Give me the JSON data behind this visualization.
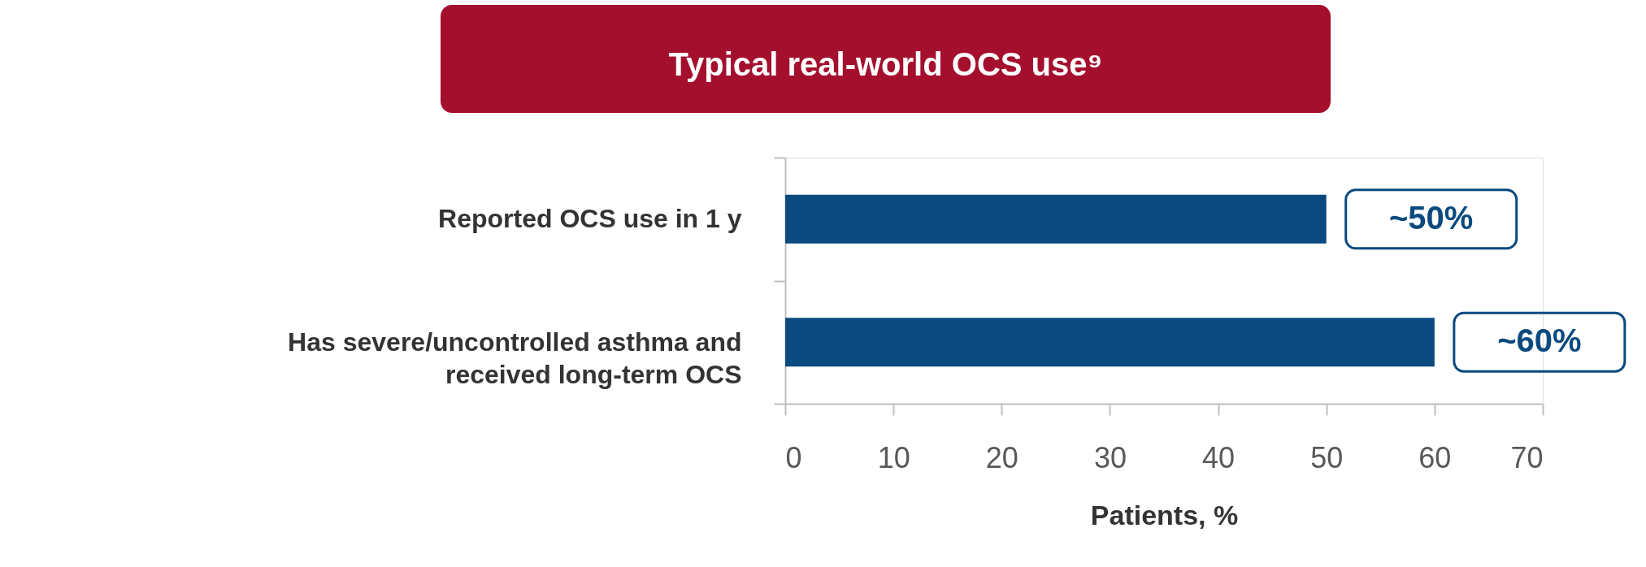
{
  "chart_data": {
    "type": "bar",
    "orientation": "horizontal",
    "title": "Typical real-world OCS use⁹",
    "xlabel": "Patients, %",
    "categories": [
      "Reported OCS use in 1 y",
      "Has severe/uncontrolled asthma and received long-term OCS"
    ],
    "values": [
      50,
      60
    ],
    "value_labels": [
      "~50%",
      "~60%"
    ],
    "color": "#0b4a7e",
    "xlim": [
      0,
      70
    ],
    "xticks": [
      0,
      10,
      20,
      30,
      40,
      50,
      60,
      70
    ],
    "grid": false
  }
}
